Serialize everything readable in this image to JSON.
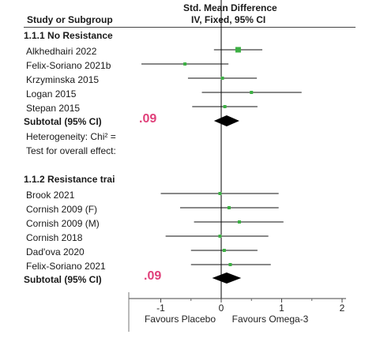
{
  "header": {
    "study_col": "Study or Subgroup",
    "effect_title": "Std. Mean Difference",
    "effect_subtitle": "IV, Fixed, 95% CI"
  },
  "groups": [
    {
      "label": "1.1.1 No Resistance",
      "studies": [
        "Alkhedhairi 2022",
        "Felix-Soriano 2021b",
        "Krzyminska 2015",
        "Logan 2015",
        "Stepan 2015"
      ],
      "subtotal_label": "Subtotal (95% CI)",
      "subtotal_value": ".09",
      "extra_lines": [
        "Heterogeneity: Chi² =",
        "Test for overall effect:"
      ]
    },
    {
      "label": "1.1.2 Resistance trai",
      "studies": [
        "Brook 2021",
        "Cornish 2009 (F)",
        "Cornish 2009 (M)",
        "Cornish 2018",
        "Dad'ova 2020",
        "Felix-Soriano 2021"
      ],
      "subtotal_label": "Subtotal (95% CI)",
      "subtotal_value": ".09",
      "extra_lines": []
    }
  ],
  "axis": {
    "ticks": [
      "-1",
      "0",
      "1",
      "2"
    ],
    "favours_left": "Favours Placebo",
    "favours_right": "Favours Omega-3"
  },
  "colors": {
    "marker": "#3cb043",
    "diamond": "#000000",
    "highlight": "#e0407a"
  },
  "chart_data": {
    "type": "forest",
    "xlim": [
      -1.5,
      2
    ],
    "xticks": [
      -1,
      0,
      1,
      2
    ],
    "studies": [
      {
        "name": "Alkhedhairi 2022",
        "est": 0.28,
        "lo": -0.12,
        "hi": 0.68
      },
      {
        "name": "Felix-Soriano 2021b",
        "est": -0.6,
        "lo": -1.32,
        "hi": 0.12
      },
      {
        "name": "Krzyminska 2015",
        "est": 0.02,
        "lo": -0.55,
        "hi": 0.59
      },
      {
        "name": "Logan 2015",
        "est": 0.5,
        "lo": -0.32,
        "hi": 1.33
      },
      {
        "name": "Stepan 2015",
        "est": 0.06,
        "lo": -0.48,
        "hi": 0.6
      },
      {
        "name": "Brook 2021",
        "est": -0.02,
        "lo": -1.0,
        "hi": 0.95
      },
      {
        "name": "Cornish 2009 (F)",
        "est": 0.13,
        "lo": -0.68,
        "hi": 0.95
      },
      {
        "name": "Cornish 2009 (M)",
        "est": 0.3,
        "lo": -0.45,
        "hi": 1.03
      },
      {
        "name": "Cornish 2018",
        "est": -0.02,
        "lo": -0.92,
        "hi": 0.78
      },
      {
        "name": "Dad'ova 2020",
        "est": 0.05,
        "lo": -0.5,
        "hi": 0.6
      },
      {
        "name": "Felix-Soriano 2021",
        "est": 0.15,
        "lo": -0.5,
        "hi": 0.82
      }
    ],
    "subtotals": [
      {
        "group": "1.1.1 No Resistance",
        "est": 0.09,
        "lo": -0.12,
        "hi": 0.3
      },
      {
        "group": "1.1.2 Resistance trai",
        "est": 0.09,
        "lo": -0.15,
        "hi": 0.33
      }
    ]
  }
}
